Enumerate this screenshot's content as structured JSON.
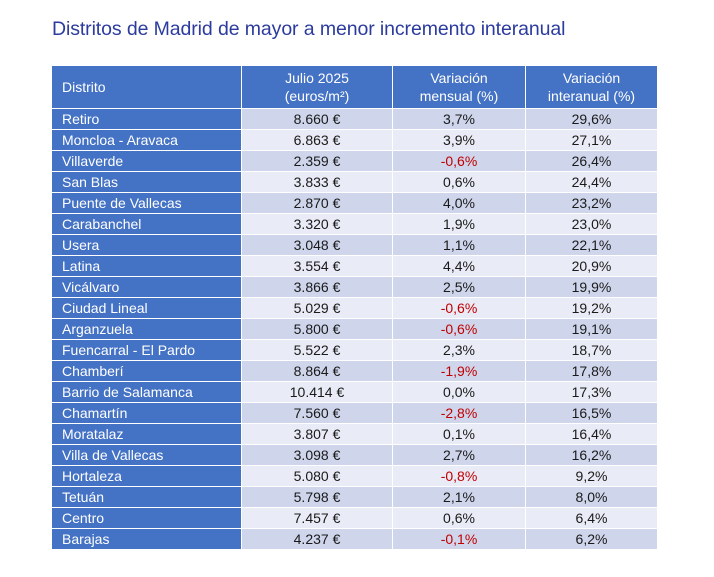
{
  "title": "Distritos de Madrid de mayor a menor incremento interanual",
  "table": {
    "headers": {
      "distrito": "Distrito",
      "price_line1": "Julio 2025",
      "price_line2": "(euros/m²)",
      "monthly_line1": "Variación",
      "monthly_line2": "mensual (%)",
      "yearly_line1": "Variación",
      "yearly_line2": "interanual (%)"
    },
    "rows": [
      {
        "distrito": "Retiro",
        "precio": "8.660 €",
        "mensual": "3,7%",
        "interanual": "29,6%",
        "neg": false
      },
      {
        "distrito": "Moncloa - Aravaca",
        "precio": "6.863 €",
        "mensual": "3,9%",
        "interanual": "27,1%",
        "neg": false
      },
      {
        "distrito": "Villaverde",
        "precio": "2.359 €",
        "mensual": "-0,6%",
        "interanual": "26,4%",
        "neg": true
      },
      {
        "distrito": "San Blas",
        "precio": "3.833 €",
        "mensual": "0,6%",
        "interanual": "24,4%",
        "neg": false
      },
      {
        "distrito": "Puente de Vallecas",
        "precio": "2.870 €",
        "mensual": "4,0%",
        "interanual": "23,2%",
        "neg": false
      },
      {
        "distrito": "Carabanchel",
        "precio": "3.320 €",
        "mensual": "1,9%",
        "interanual": "23,0%",
        "neg": false
      },
      {
        "distrito": "Usera",
        "precio": "3.048 €",
        "mensual": "1,1%",
        "interanual": "22,1%",
        "neg": false
      },
      {
        "distrito": "Latina",
        "precio": "3.554 €",
        "mensual": "4,4%",
        "interanual": "20,9%",
        "neg": false
      },
      {
        "distrito": "Vicálvaro",
        "precio": "3.866 €",
        "mensual": "2,5%",
        "interanual": "19,9%",
        "neg": false
      },
      {
        "distrito": "Ciudad Lineal",
        "precio": "5.029 €",
        "mensual": "-0,6%",
        "interanual": "19,2%",
        "neg": true
      },
      {
        "distrito": "Arganzuela",
        "precio": "5.800 €",
        "mensual": "-0,6%",
        "interanual": "19,1%",
        "neg": true
      },
      {
        "distrito": "Fuencarral - El Pardo",
        "precio": "5.522 €",
        "mensual": "2,3%",
        "interanual": "18,7%",
        "neg": false
      },
      {
        "distrito": "Chamberí",
        "precio": "8.864 €",
        "mensual": "-1,9%",
        "interanual": "17,8%",
        "neg": true
      },
      {
        "distrito": "Barrio de Salamanca",
        "precio": "10.414 €",
        "mensual": "0,0%",
        "interanual": "17,3%",
        "neg": false
      },
      {
        "distrito": "Chamartín",
        "precio": "7.560 €",
        "mensual": "-2,8%",
        "interanual": "16,5%",
        "neg": true
      },
      {
        "distrito": "Moratalaz",
        "precio": "3.807 €",
        "mensual": "0,1%",
        "interanual": "16,4%",
        "neg": false
      },
      {
        "distrito": "Villa de Vallecas",
        "precio": "3.098 €",
        "mensual": "2,7%",
        "interanual": "16,2%",
        "neg": false
      },
      {
        "distrito": "Hortaleza",
        "precio": "5.080 €",
        "mensual": "-0,8%",
        "interanual": "9,2%",
        "neg": true
      },
      {
        "distrito": "Tetuán",
        "precio": "5.798 €",
        "mensual": "2,1%",
        "interanual": "8,0%",
        "neg": false
      },
      {
        "distrito": "Centro",
        "precio": "7.457 €",
        "mensual": "0,6%",
        "interanual": "6,4%",
        "neg": false
      },
      {
        "distrito": "Barajas",
        "precio": "4.237 €",
        "mensual": "-0,1%",
        "interanual": "6,2%",
        "neg": true
      }
    ]
  },
  "colors": {
    "title": "#2b3b9e",
    "header_bg": "#4472c4",
    "row_odd": "#cfd6ec",
    "row_even": "#e9ecf6",
    "negative": "#c00000"
  }
}
